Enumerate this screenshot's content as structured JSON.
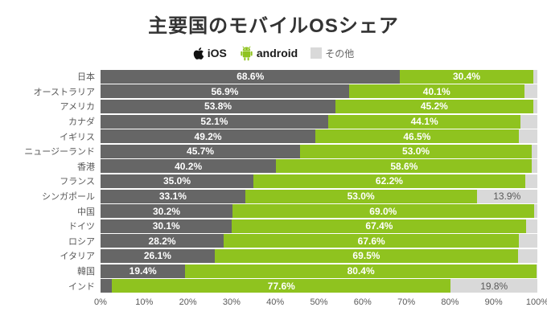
{
  "title": "主要国のモバイルOSシェア",
  "legend": {
    "ios": "iOS",
    "android": "android",
    "other": "その他"
  },
  "colors": {
    "ios": "#666666",
    "android": "#8fc31f",
    "other": "#d9d9d9",
    "title": "#333333"
  },
  "chart_data": {
    "type": "bar",
    "stacked": true,
    "orientation": "horizontal",
    "title": "主要国のモバイルOSシェア",
    "series_names": [
      "iOS",
      "android",
      "その他"
    ],
    "xlim": [
      0,
      100
    ],
    "x_ticks": [
      "0%",
      "10%",
      "20%",
      "30%",
      "40%",
      "50%",
      "60%",
      "70%",
      "80%",
      "90%",
      "100%"
    ],
    "legend_position": "top",
    "grid": false,
    "categories": [
      "日本",
      "オーストラリア",
      "アメリカ",
      "カナダ",
      "イギリス",
      "ニュージーランド",
      "香港",
      "フランス",
      "シンガポール",
      "中国",
      "ドイツ",
      "ロシア",
      "イタリア",
      "韓国",
      "インド"
    ],
    "rows": [
      {
        "country": "日本",
        "ios": 68.6,
        "android": 30.4,
        "other": 1.0,
        "ios_label": "68.6%",
        "android_label": "30.4%",
        "other_label": ""
      },
      {
        "country": "オーストラリア",
        "ios": 56.9,
        "android": 40.1,
        "other": 3.0,
        "ios_label": "56.9%",
        "android_label": "40.1%",
        "other_label": ""
      },
      {
        "country": "アメリカ",
        "ios": 53.8,
        "android": 45.2,
        "other": 1.0,
        "ios_label": "53.8%",
        "android_label": "45.2%",
        "other_label": ""
      },
      {
        "country": "カナダ",
        "ios": 52.1,
        "android": 44.1,
        "other": 3.8,
        "ios_label": "52.1%",
        "android_label": "44.1%",
        "other_label": ""
      },
      {
        "country": "イギリス",
        "ios": 49.2,
        "android": 46.5,
        "other": 4.3,
        "ios_label": "49.2%",
        "android_label": "46.5%",
        "other_label": ""
      },
      {
        "country": "ニュージーランド",
        "ios": 45.7,
        "android": 53.0,
        "other": 1.3,
        "ios_label": "45.7%",
        "android_label": "53.0%",
        "other_label": ""
      },
      {
        "country": "香港",
        "ios": 40.2,
        "android": 58.6,
        "other": 1.2,
        "ios_label": "40.2%",
        "android_label": "58.6%",
        "other_label": ""
      },
      {
        "country": "フランス",
        "ios": 35.0,
        "android": 62.2,
        "other": 2.8,
        "ios_label": "35.0%",
        "android_label": "62.2%",
        "other_label": ""
      },
      {
        "country": "シンガポール",
        "ios": 33.1,
        "android": 53.0,
        "other": 13.9,
        "ios_label": "33.1%",
        "android_label": "53.0%",
        "other_label": "13.9%"
      },
      {
        "country": "中国",
        "ios": 30.2,
        "android": 69.0,
        "other": 0.8,
        "ios_label": "30.2%",
        "android_label": "69.0%",
        "other_label": ""
      },
      {
        "country": "ドイツ",
        "ios": 30.1,
        "android": 67.4,
        "other": 2.5,
        "ios_label": "30.1%",
        "android_label": "67.4%",
        "other_label": ""
      },
      {
        "country": "ロシア",
        "ios": 28.2,
        "android": 67.6,
        "other": 4.2,
        "ios_label": "28.2%",
        "android_label": "67.6%",
        "other_label": ""
      },
      {
        "country": "イタリア",
        "ios": 26.1,
        "android": 69.5,
        "other": 4.4,
        "ios_label": "26.1%",
        "android_label": "69.5%",
        "other_label": ""
      },
      {
        "country": "韓国",
        "ios": 19.4,
        "android": 80.4,
        "other": 0.2,
        "ios_label": "19.4%",
        "android_label": "80.4%",
        "other_label": ""
      },
      {
        "country": "インド",
        "ios": 2.6,
        "android": 77.6,
        "other": 19.8,
        "ios_label": "",
        "android_label": "77.6%",
        "other_label": "19.8%"
      }
    ]
  }
}
